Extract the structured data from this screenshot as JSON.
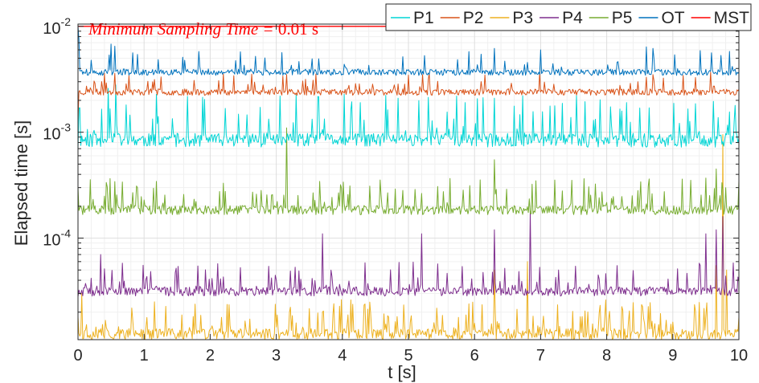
{
  "chart_data": {
    "type": "line",
    "xlabel": "t [s]",
    "ylabel": "Elapsed time [s]",
    "xlim": [
      0,
      10
    ],
    "ylim": [
      1.1e-05,
      0.0105
    ],
    "y_scale": "log",
    "x_ticks": [
      "0",
      "1",
      "2",
      "3",
      "4",
      "5",
      "6",
      "7",
      "8",
      "9",
      "10"
    ],
    "y_ticks": [
      {
        "value": 0.0001,
        "base": "10",
        "exp": "-4"
      },
      {
        "value": 0.001,
        "base": "10",
        "exp": "-3"
      },
      {
        "value": 0.01,
        "base": "10",
        "exp": "-2"
      }
    ],
    "grid": true,
    "legend_position": "top-right",
    "annotation": {
      "text": "Minimum Sampling Time = ",
      "value": "0.01 s"
    },
    "series": [
      {
        "name": "P1",
        "color": "#00d5d5",
        "baseline": 0.00085,
        "spread": 0.15,
        "spike_rate": 0.18,
        "spike_max": 1.7,
        "seed": 11,
        "first": 0.0007,
        "spikes": [
          [
            0.57,
            0.0028
          ],
          [
            0.45,
            0.0026
          ],
          [
            3.05,
            0.0022
          ],
          [
            6.3,
            0.0021
          ]
        ]
      },
      {
        "name": "P2",
        "color": "#d95319",
        "baseline": 0.0024,
        "spread": 0.07,
        "spike_rate": 0.09,
        "spike_max": 0.55,
        "seed": 23,
        "first": 0.0013,
        "spikes": [
          [
            0.55,
            0.0036
          ],
          [
            3.1,
            0.0034
          ],
          [
            8.6,
            0.0033
          ]
        ]
      },
      {
        "name": "P3",
        "color": "#edb120",
        "baseline": 1.25e-05,
        "spread": 0.12,
        "spike_rate": 0.22,
        "spike_max": 1.1,
        "seed": 37,
        "first": 1.8e-05,
        "spikes": [
          [
            0.05,
            3e-05
          ],
          [
            6.3,
            5e-05
          ],
          [
            6.8,
            6e-05
          ],
          [
            9.65,
            5.5e-05
          ],
          [
            9.75,
            0.00095
          ],
          [
            9.82,
            5e-05
          ]
        ]
      },
      {
        "name": "P4",
        "color": "#7e2f8e",
        "baseline": 3.15e-05,
        "spread": 0.1,
        "spike_rate": 0.18,
        "spike_max": 0.9,
        "seed": 53,
        "first": 2.8e-05,
        "spikes": [
          [
            0.35,
            7e-05
          ],
          [
            3.7,
            0.00011
          ],
          [
            5.2,
            0.00011
          ],
          [
            6.3,
            0.00012
          ],
          [
            6.85,
            0.00018
          ],
          [
            9.5,
            0.00011
          ],
          [
            9.65,
            0.00012
          ],
          [
            9.75,
            0.00016
          ]
        ]
      },
      {
        "name": "P5",
        "color": "#77ac30",
        "baseline": 0.000185,
        "spread": 0.1,
        "spike_rate": 0.2,
        "spike_max": 1.0,
        "seed": 71,
        "first": 0.0003,
        "spikes": [
          [
            3.15,
            0.0011
          ],
          [
            6.3,
            0.00055
          ],
          [
            9.65,
            0.00045
          ]
        ]
      },
      {
        "name": "OT",
        "color": "#0072bd",
        "baseline": 0.0037,
        "spread": 0.07,
        "spike_rate": 0.1,
        "spike_max": 0.6,
        "seed": 89,
        "first": 0.01,
        "spikes": [
          [
            0.02,
            0.0075
          ],
          [
            0.5,
            0.0068
          ],
          [
            0.55,
            0.0065
          ],
          [
            6.3,
            0.0062
          ],
          [
            7.0,
            0.006
          ],
          [
            8.6,
            0.0064
          ],
          [
            8.7,
            0.0062
          ]
        ]
      },
      {
        "name": "MST",
        "color": "#ff0000",
        "constant": 0.01
      }
    ]
  }
}
